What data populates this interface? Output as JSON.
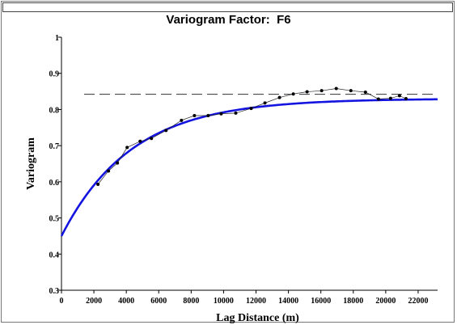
{
  "chart_data": {
    "type": "line",
    "title": "Variogram Factor:  F6",
    "xlabel": "Lag Distance (m)",
    "ylabel": "Variogram",
    "xlim": [
      0,
      23200
    ],
    "ylim": [
      0.3,
      1.0
    ],
    "x_ticks": [
      "0",
      "2000",
      "4000",
      "6000",
      "8000",
      "10000",
      "12000",
      "14000",
      "16000",
      "18000",
      "20000",
      "22000"
    ],
    "y_ticks": [
      "0.3",
      "0.4",
      "0.5",
      "0.6",
      "0.7",
      "0.8",
      "0.9",
      "1"
    ],
    "grid": false,
    "sill": 0.842,
    "series": [
      {
        "kind": "experimental",
        "color": "#000000",
        "x": [
          2250,
          2900,
          3450,
          4050,
          4850,
          5550,
          6450,
          7400,
          8200,
          9050,
          9850,
          10750,
          11700,
          12550,
          13450,
          14300,
          15150,
          16050,
          16950,
          17850,
          18750,
          19550,
          20300,
          20850,
          21250
        ],
        "y": [
          0.593,
          0.63,
          0.652,
          0.695,
          0.712,
          0.72,
          0.742,
          0.77,
          0.783,
          0.783,
          0.788,
          0.79,
          0.803,
          0.818,
          0.833,
          0.843,
          0.849,
          0.852,
          0.858,
          0.852,
          0.848,
          0.829,
          0.831,
          0.838,
          0.83
        ]
      },
      {
        "kind": "model",
        "color": "#1414e0",
        "nugget": 0.45,
        "sill": 0.83,
        "range": 13000
      }
    ]
  }
}
